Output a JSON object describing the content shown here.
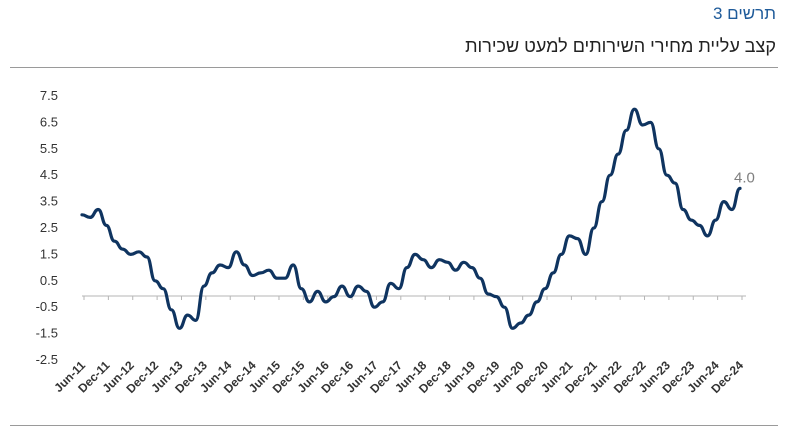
{
  "figure": {
    "label": "תרשים 3",
    "title": "קצב עליית מחירי השירותים למעט שכירות"
  },
  "colors": {
    "line": "#0f3460",
    "label": "#1f5b9a",
    "end_label": "#7f7f7f"
  },
  "chart_data": {
    "type": "line",
    "title": "קצב עליית מחירי השירותים למעט שכירות",
    "xlabel": "",
    "ylabel": "",
    "ylim": [
      -2.5,
      7.5
    ],
    "yticks": [
      "7.5",
      "6.5",
      "5.5",
      "4.5",
      "3.5",
      "2.5",
      "1.5",
      "0.5",
      "-0.5",
      "-1.5",
      "-2.5"
    ],
    "ytick_values": [
      7.5,
      6.5,
      5.5,
      4.5,
      3.5,
      2.5,
      1.5,
      0.5,
      -0.5,
      -1.5,
      -2.5
    ],
    "xticks": [
      "Jun-11",
      "Dec-11",
      "Jun-12",
      "Dec-12",
      "Jun-13",
      "Dec-13",
      "Jun-14",
      "Dec-14",
      "Jun-15",
      "Dec-15",
      "Jun-16",
      "Dec-16",
      "Jun-17",
      "Dec-17",
      "Jun-18",
      "Dec-18",
      "Jun-19",
      "Dec-19",
      "Jun-20",
      "Dec-20",
      "Jun-21",
      "Dec-21",
      "Jun-22",
      "Dec-22",
      "Jun-23",
      "Dec-23",
      "Jun-24",
      "Dec-24"
    ],
    "grid": false,
    "legend": "none",
    "end_label": "4.0",
    "series": [
      {
        "x": [
          "Jun-11",
          "Aug-11",
          "Oct-11",
          "Dec-11",
          "Feb-12",
          "Apr-12",
          "Jun-12",
          "Aug-12",
          "Oct-12",
          "Dec-12",
          "Feb-13",
          "Apr-13",
          "Jun-13",
          "Aug-13",
          "Oct-13",
          "Dec-13",
          "Feb-14",
          "Apr-14",
          "Jun-14",
          "Aug-14",
          "Oct-14",
          "Dec-14",
          "Feb-15",
          "Apr-15",
          "Jun-15",
          "Aug-15",
          "Oct-15",
          "Dec-15",
          "Feb-16",
          "Apr-16",
          "Jun-16",
          "Aug-16",
          "Oct-16",
          "Dec-16",
          "Feb-17",
          "Apr-17",
          "Jun-17",
          "Aug-17",
          "Oct-17",
          "Dec-17",
          "Feb-18",
          "Apr-18",
          "Jun-18",
          "Aug-18",
          "Oct-18",
          "Dec-18",
          "Feb-19",
          "Apr-19",
          "Jun-19",
          "Aug-19",
          "Oct-19",
          "Dec-19",
          "Feb-20",
          "Apr-20",
          "Jun-20",
          "Aug-20",
          "Oct-20",
          "Dec-20",
          "Feb-21",
          "Apr-21",
          "Jun-21",
          "Aug-21",
          "Oct-21",
          "Dec-21",
          "Feb-22",
          "Apr-22",
          "Jun-22",
          "Aug-22",
          "Oct-22",
          "Dec-22",
          "Feb-23",
          "Apr-23",
          "Jun-23",
          "Aug-23",
          "Oct-23",
          "Dec-23",
          "Feb-24",
          "Apr-24",
          "Jun-24",
          "Aug-24",
          "Oct-24",
          "Dec-24"
        ],
        "values": [
          3.0,
          2.9,
          3.2,
          2.6,
          2.0,
          1.7,
          1.5,
          1.6,
          1.4,
          0.5,
          0.2,
          -0.6,
          -1.3,
          -0.8,
          -1.0,
          0.3,
          0.8,
          1.1,
          1.0,
          1.6,
          1.1,
          0.7,
          0.8,
          0.9,
          0.6,
          0.6,
          1.1,
          0.2,
          -0.3,
          0.1,
          -0.3,
          -0.1,
          0.3,
          -0.1,
          0.3,
          0.1,
          -0.5,
          -0.3,
          0.4,
          0.2,
          1.0,
          1.5,
          1.3,
          1.0,
          1.3,
          1.2,
          0.9,
          1.2,
          1.0,
          0.6,
          0.0,
          -0.1,
          -0.5,
          -1.3,
          -1.1,
          -0.8,
          -0.3,
          0.2,
          0.8,
          1.5,
          2.2,
          2.1,
          1.5,
          2.5,
          3.5,
          4.5,
          5.3,
          6.2,
          7.0,
          6.4,
          6.5,
          5.5,
          4.5,
          4.2,
          3.2,
          2.8,
          2.6,
          2.2,
          2.8,
          3.5,
          3.2,
          4.0
        ]
      }
    ]
  }
}
